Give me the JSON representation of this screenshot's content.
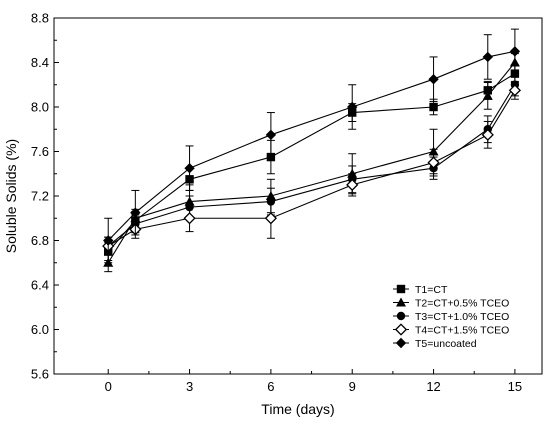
{
  "chart_data": {
    "type": "line",
    "xlabel": "Time (days)",
    "ylabel": "Soluble Solids (%)",
    "xlim": [
      -2,
      16
    ],
    "ylim": [
      5.6,
      8.8
    ],
    "xticks": [
      0,
      3,
      6,
      9,
      12,
      15
    ],
    "yticks": [
      5.6,
      6.0,
      6.4,
      6.8,
      7.2,
      7.6,
      8.0,
      8.4,
      8.8
    ],
    "x": [
      0,
      1,
      3,
      6,
      9,
      12,
      14,
      15
    ],
    "grid": false,
    "legend_position": "bottom-right",
    "series": [
      {
        "name": "T1=CT",
        "marker": "square-filled",
        "values": [
          6.7,
          6.98,
          7.35,
          7.55,
          7.95,
          8.0,
          8.15,
          8.3
        ],
        "errors": [
          0.08,
          0.08,
          0.1,
          0.15,
          0.08,
          0.07,
          0.08,
          0.08
        ]
      },
      {
        "name": "T2=CT+0.5% TCEO",
        "marker": "triangle-filled",
        "values": [
          6.6,
          7.0,
          7.15,
          7.2,
          7.4,
          7.6,
          8.1,
          8.4
        ],
        "errors": [
          0.08,
          0.08,
          0.15,
          0.15,
          0.18,
          0.2,
          0.12,
          0.08
        ]
      },
      {
        "name": "T3=CT+1.0% TCEO",
        "marker": "circle-filled",
        "values": [
          6.75,
          6.95,
          7.1,
          7.15,
          7.35,
          7.45,
          7.8,
          8.2
        ],
        "errors": [
          0.08,
          0.08,
          0.1,
          0.12,
          0.12,
          0.1,
          0.12,
          0.1
        ]
      },
      {
        "name": "T4=CT+1.5% TCEO",
        "marker": "diamond-open",
        "values": [
          6.75,
          6.9,
          7.0,
          7.0,
          7.3,
          7.5,
          7.75,
          8.15
        ],
        "errors": [
          0.08,
          0.08,
          0.12,
          0.18,
          0.1,
          0.12,
          0.12,
          0.08
        ]
      },
      {
        "name": "T5=uncoated",
        "marker": "diamond-filled",
        "values": [
          6.8,
          7.05,
          7.45,
          7.75,
          8.0,
          8.25,
          8.45,
          8.5
        ],
        "errors": [
          0.2,
          0.2,
          0.2,
          0.2,
          0.2,
          0.2,
          0.2,
          0.2
        ]
      }
    ]
  }
}
